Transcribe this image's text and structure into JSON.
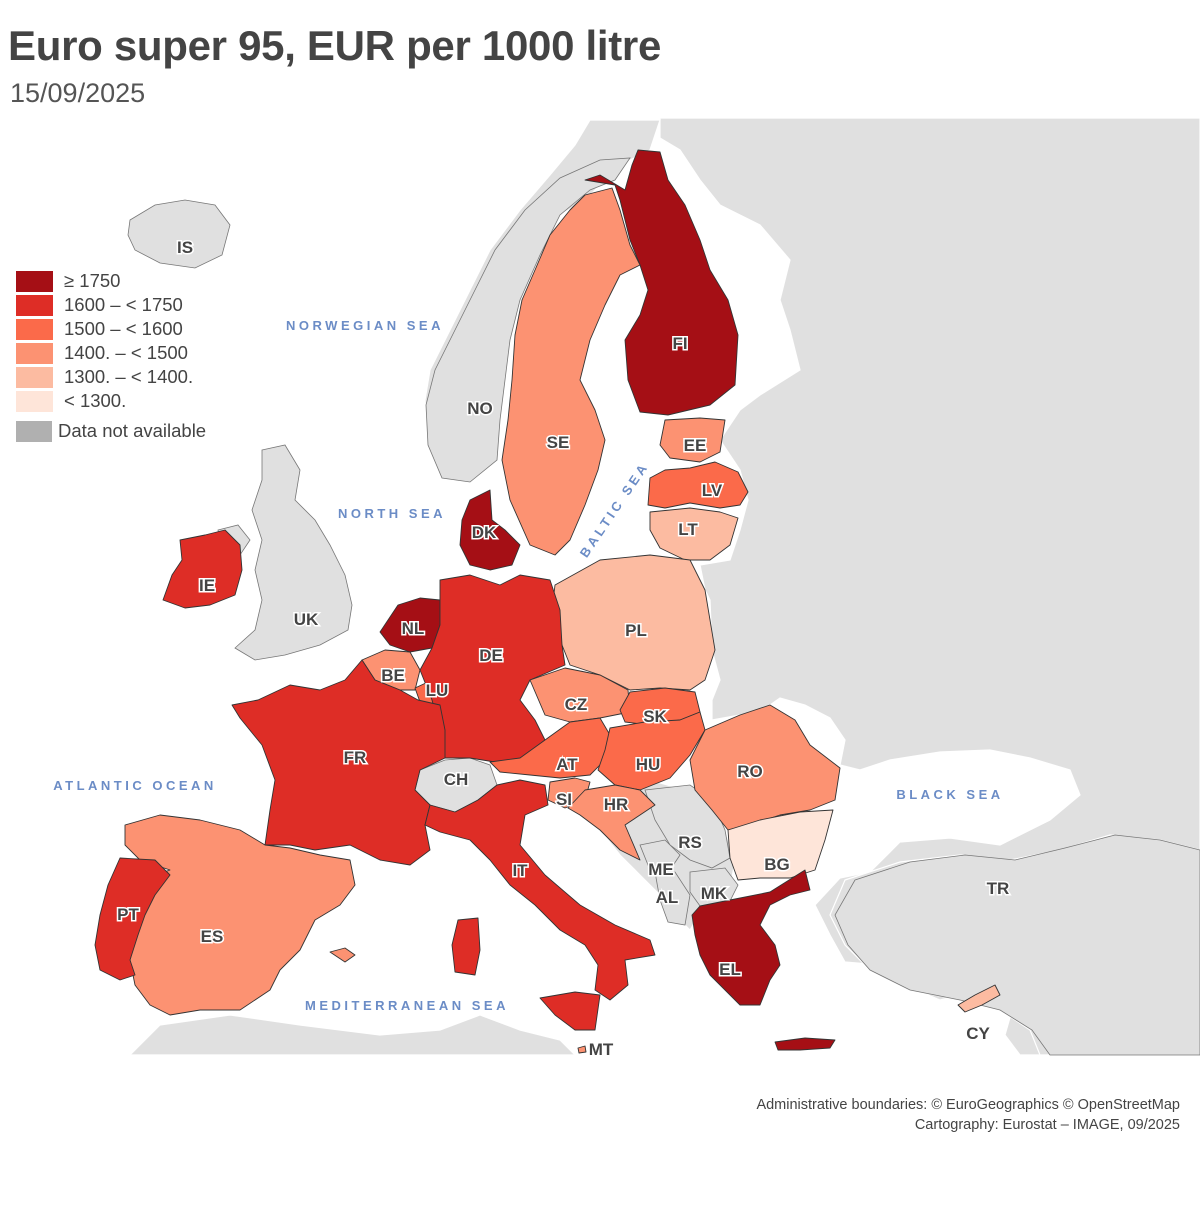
{
  "title": "Euro super 95, EUR per 1000 litre",
  "subtitle": "15/09/2025",
  "legend": [
    {
      "label": "≥ 1750",
      "color": "#a50f15"
    },
    {
      "label": "1600 – < 1750",
      "color": "#de2d26"
    },
    {
      "label": "1500 – < 1600",
      "color": "#fb6a4a"
    },
    {
      "label": "1400. – < 1500",
      "color": "#fc9272"
    },
    {
      "label": "1300. – < 1400.",
      "color": "#fcbba1"
    },
    {
      "label": "< 1300.",
      "color": "#fee5d9"
    }
  ],
  "legend_na": {
    "label": "Data not available",
    "color": "#b0b0b0"
  },
  "seas": {
    "norwegian": "NORWEGIAN SEA",
    "north": "NORTH SEA",
    "baltic": "BALTIC SEA",
    "atlantic": "ATLANTIC OCEAN",
    "black": "BLACK SEA",
    "mediterranean": "MEDITERRANEAN SEA"
  },
  "countries": {
    "IS": {
      "label": "IS",
      "klass": "na"
    },
    "NO": {
      "label": "NO",
      "klass": "na"
    },
    "UK": {
      "label": "UK",
      "klass": "na"
    },
    "CH": {
      "label": "CH",
      "klass": "na"
    },
    "RS": {
      "label": "RS",
      "klass": "na"
    },
    "ME": {
      "label": "ME",
      "klass": "na"
    },
    "AL": {
      "label": "AL",
      "klass": "na"
    },
    "MK": {
      "label": "MK",
      "klass": "na"
    },
    "TR": {
      "label": "TR",
      "klass": "na"
    },
    "FI": {
      "label": "FI",
      "klass": 0
    },
    "DK": {
      "label": "DK",
      "klass": 0
    },
    "NL": {
      "label": "NL",
      "klass": 0
    },
    "EL": {
      "label": "EL",
      "klass": 0
    },
    "IE": {
      "label": "IE",
      "klass": 1
    },
    "FR": {
      "label": "FR",
      "klass": 1
    },
    "DE": {
      "label": "DE",
      "klass": 1
    },
    "IT": {
      "label": "IT",
      "klass": 1
    },
    "PT": {
      "label": "PT",
      "klass": 1
    },
    "LV": {
      "label": "LV",
      "klass": 2
    },
    "SK": {
      "label": "SK",
      "klass": 2
    },
    "HU": {
      "label": "HU",
      "klass": 2
    },
    "AT": {
      "label": "AT",
      "klass": 2
    },
    "LU": {
      "label": "LU",
      "klass": 2
    },
    "SE": {
      "label": "SE",
      "klass": 3
    },
    "EE": {
      "label": "EE",
      "klass": 3
    },
    "BE": {
      "label": "BE",
      "klass": 3
    },
    "CZ": {
      "label": "CZ",
      "klass": 3
    },
    "RO": {
      "label": "RO",
      "klass": 3
    },
    "ES": {
      "label": "ES",
      "klass": 3
    },
    "SI": {
      "label": "SI",
      "klass": 3
    },
    "HR": {
      "label": "HR",
      "klass": 3
    },
    "MT": {
      "label": "MT",
      "klass": 3
    },
    "LT": {
      "label": "LT",
      "klass": 4
    },
    "PL": {
      "label": "PL",
      "klass": 4
    },
    "CY": {
      "label": "CY",
      "klass": 4
    },
    "BG": {
      "label": "BG",
      "klass": 5
    }
  },
  "credits": {
    "line1": "Administrative boundaries: © EuroGeographics © OpenStreetMap",
    "line2": "Cartography: Eurostat – IMAGE, 09/2025"
  }
}
